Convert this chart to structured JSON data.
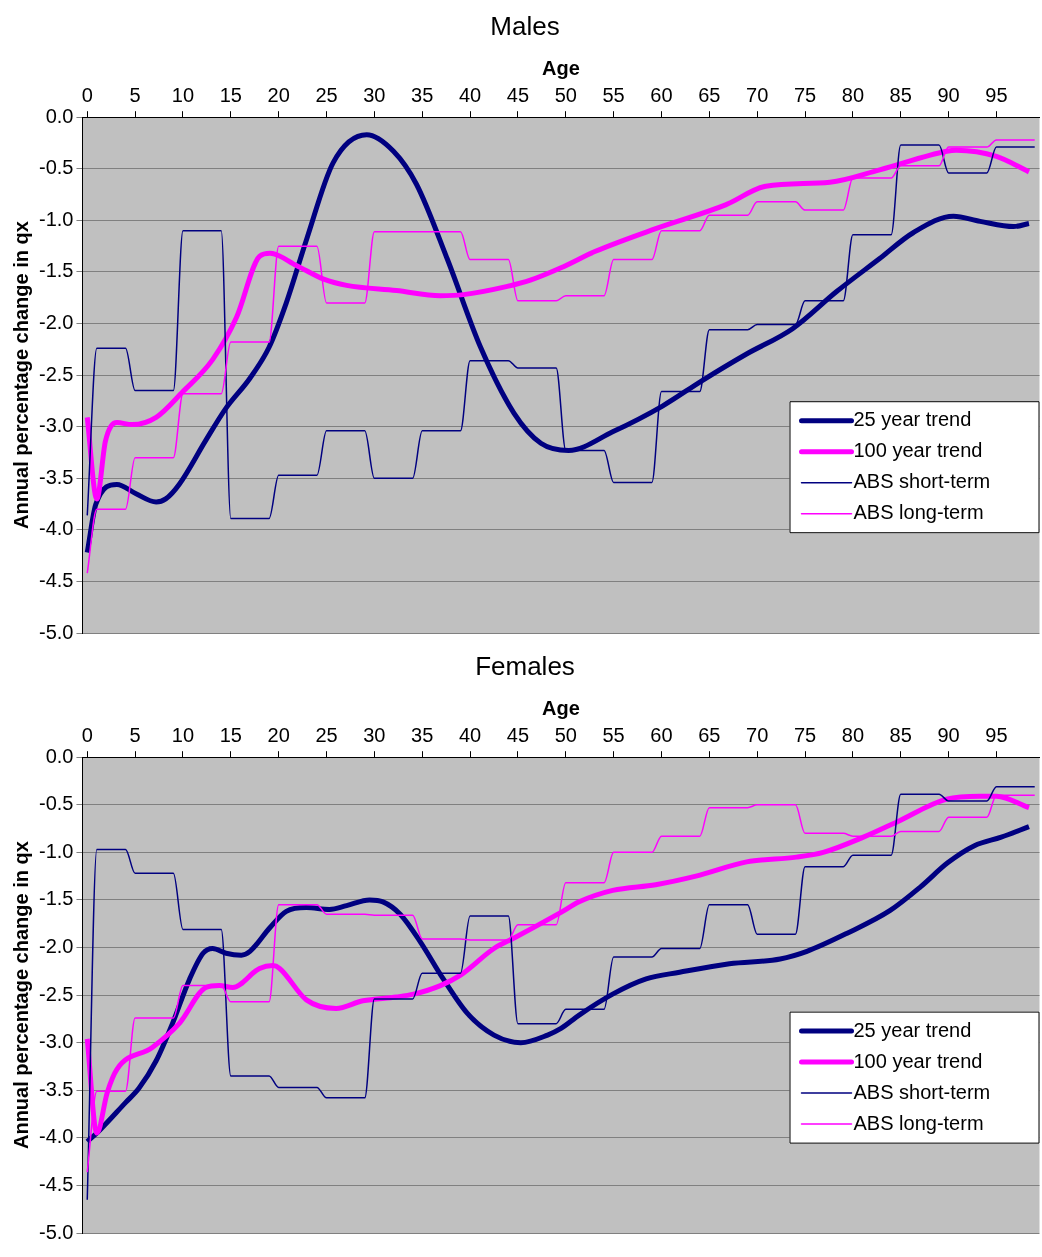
{
  "chart_data": [
    {
      "type": "line",
      "title": "Males",
      "xlabel": "Age",
      "ylabel": "Annual percentage change in qx",
      "xlim": [
        -0.5,
        99.5
      ],
      "xticks": [
        0,
        5,
        10,
        15,
        20,
        25,
        30,
        35,
        40,
        45,
        50,
        55,
        60,
        65,
        70,
        75,
        80,
        85,
        90,
        95
      ],
      "ylim": [
        -5,
        0
      ],
      "yticks": [
        {
          "value": -5,
          "label": "-5.0"
        },
        -4.5,
        {
          "value": -4,
          "label": "-4.0"
        },
        -3.5,
        {
          "value": -3,
          "label": "-3.0"
        },
        -2.5,
        {
          "value": -2,
          "label": "-2.0"
        },
        -1.5,
        {
          "value": -1,
          "label": "-1.0"
        },
        -0.5,
        {
          "value": 0,
          "label": "0.0"
        }
      ],
      "grid": "y",
      "legend": "right",
      "x": [
        0,
        1,
        4,
        5,
        9,
        10,
        14,
        15,
        19,
        20,
        24,
        25,
        29,
        30,
        34,
        35,
        39,
        40,
        44,
        45,
        49,
        50,
        54,
        55,
        59,
        60,
        64,
        65,
        69,
        70,
        74,
        75,
        79,
        80,
        84,
        85,
        89,
        90,
        94,
        95,
        99
      ],
      "series": [
        {
          "name": "25 year trend",
          "color": "#000080",
          "x": [
            0,
            0.9,
            3.1,
            5.1,
            7.2,
            8.2,
            9.6,
            12.4,
            14.5,
            17,
            19,
            20.8,
            22.9,
            25.7,
            29.2,
            32,
            34.4,
            37.6,
            41.1,
            44.6,
            47.4,
            50.3,
            54.9,
            60.1,
            64.3,
            68.8,
            73.7,
            78.3,
            82.8,
            86.3,
            90.5,
            93.3,
            96.8,
            98.4
          ],
          "values": [
            -4.22,
            -3.75,
            -3.56,
            -3.65,
            -3.73,
            -3.7,
            -3.56,
            -3.13,
            -2.82,
            -2.53,
            -2.23,
            -1.8,
            -1.19,
            -0.44,
            -0.17,
            -0.33,
            -0.65,
            -1.37,
            -2.23,
            -2.87,
            -3.16,
            -3.23,
            -3.05,
            -2.8,
            -2.55,
            -2.3,
            -2.05,
            -1.69,
            -1.37,
            -1.12,
            -0.96,
            -1.01,
            -1.06,
            -1.03
          ]
        },
        {
          "name": "100 year trend",
          "color": "#ff00ff",
          "x": [
            0,
            1,
            1.9,
            3.1,
            4.7,
            7.2,
            10,
            13.1,
            15.6,
            18,
            19.1,
            21.9,
            24.7,
            27.1,
            32.3,
            36.9,
            39.3,
            43.9,
            46.3,
            49.5,
            53.1,
            59.4,
            66.7,
            70.9,
            77.6,
            82.8,
            89.8,
            90.8,
            95,
            98.4
          ],
          "values": [
            -2.91,
            -3.7,
            -3.14,
            -2.96,
            -2.98,
            -2.91,
            -2.66,
            -2.35,
            -1.94,
            -1.35,
            -1.32,
            -1.44,
            -1.57,
            -1.63,
            -1.68,
            -1.73,
            -1.72,
            -1.64,
            -1.58,
            -1.46,
            -1.3,
            -1.08,
            -0.85,
            -0.67,
            -0.63,
            -0.51,
            -0.33,
            -0.32,
            -0.38,
            -0.53
          ]
        },
        {
          "name": "ABS short-term",
          "color": "#000080",
          "values": [
            -3.86,
            -2.24,
            -2.24,
            -2.65,
            -2.65,
            -1.1,
            -1.1,
            -3.89,
            -3.89,
            -3.47,
            -3.47,
            -3.04,
            -3.04,
            -3.5,
            -3.5,
            -3.04,
            -3.04,
            -2.36,
            -2.36,
            -2.43,
            -2.43,
            -3.23,
            -3.23,
            -3.54,
            -3.54,
            -2.66,
            -2.66,
            -2.06,
            -2.06,
            -2.01,
            -2.01,
            -1.78,
            -1.78,
            -1.14,
            -1.14,
            -0.27,
            -0.27,
            -0.54,
            -0.54,
            -0.29,
            -0.29
          ]
        },
        {
          "name": "ABS long-term",
          "color": "#ff00ff",
          "values": [
            -4.42,
            -3.8,
            -3.8,
            -3.3,
            -3.3,
            -2.68,
            -2.68,
            -2.18,
            -2.18,
            -1.25,
            -1.25,
            -1.8,
            -1.8,
            -1.11,
            -1.11,
            -1.11,
            -1.11,
            -1.38,
            -1.38,
            -1.78,
            -1.78,
            -1.73,
            -1.73,
            -1.38,
            -1.38,
            -1.1,
            -1.1,
            -0.95,
            -0.95,
            -0.82,
            -0.82,
            -0.9,
            -0.9,
            -0.59,
            -0.59,
            -0.47,
            -0.47,
            -0.29,
            -0.29,
            -0.22,
            -0.22
          ]
        }
      ]
    },
    {
      "type": "line",
      "title": "Females",
      "xlabel": "Age",
      "ylabel": "Annual percentage change in qx",
      "xlim": [
        -0.5,
        99.5
      ],
      "xticks": [
        0,
        5,
        10,
        15,
        20,
        25,
        30,
        35,
        40,
        45,
        50,
        55,
        60,
        65,
        70,
        75,
        80,
        85,
        90,
        95
      ],
      "ylim": [
        -5,
        0
      ],
      "yticks": [
        {
          "value": -5,
          "label": "-5.0"
        },
        -4.5,
        {
          "value": -4,
          "label": "-4.0"
        },
        -3.5,
        {
          "value": -3,
          "label": "-3.0"
        },
        -2.5,
        {
          "value": -2,
          "label": "-2.0"
        },
        -1.5,
        {
          "value": -1,
          "label": "-1.0"
        },
        -0.5,
        {
          "value": 0,
          "label": "0.0"
        }
      ],
      "grid": "y",
      "legend": "right",
      "x": [
        0,
        1,
        4,
        5,
        9,
        10,
        14,
        15,
        19,
        20,
        24,
        25,
        29,
        30,
        34,
        35,
        39,
        40,
        44,
        45,
        49,
        50,
        54,
        55,
        59,
        60,
        64,
        65,
        69,
        70,
        74,
        75,
        79,
        80,
        84,
        85,
        89,
        90,
        94,
        95,
        99
      ],
      "series": [
        {
          "name": "25 year trend",
          "color": "#000080",
          "x": [
            0,
            1.2,
            4,
            5.4,
            7.2,
            8.9,
            10.7,
            12.1,
            13.1,
            14.5,
            16.1,
            17,
            19.1,
            20.8,
            22.9,
            25.3,
            27.1,
            29.5,
            30.9,
            32.7,
            34.8,
            37.2,
            39.7,
            42.5,
            45.3,
            48.1,
            49.5,
            51.4,
            54.9,
            58.4,
            61.9,
            67.1,
            72.4,
            75.2,
            79.4,
            83.9,
            87.1,
            89.9,
            92.7,
            95.5,
            98.4
          ],
          "values": [
            -4.04,
            -3.93,
            -3.63,
            -3.48,
            -3.19,
            -2.8,
            -2.33,
            -2.06,
            -2.01,
            -2.06,
            -2.08,
            -2.04,
            -1.79,
            -1.62,
            -1.58,
            -1.6,
            -1.56,
            -1.5,
            -1.52,
            -1.65,
            -1.94,
            -2.33,
            -2.69,
            -2.92,
            -3,
            -2.92,
            -2.85,
            -2.71,
            -2.49,
            -2.33,
            -2.26,
            -2.17,
            -2.12,
            -2.04,
            -1.85,
            -1.61,
            -1.36,
            -1.11,
            -0.93,
            -0.84,
            -0.73
          ]
        },
        {
          "name": "100 year trend",
          "color": "#ff00ff",
          "x": [
            0,
            1,
            2.1,
            3.1,
            6.8,
            9.6,
            12.4,
            13.8,
            15.2,
            18,
            19.4,
            20.1,
            22.9,
            26,
            28.8,
            32.3,
            34.1,
            36.9,
            39,
            42.5,
            44.6,
            49.5,
            51.4,
            54.9,
            59.4,
            63.6,
            68.9,
            74.1,
            76.9,
            81.1,
            84.6,
            89.8,
            93.3,
            95,
            98.4
          ],
          "values": [
            -2.96,
            -3.95,
            -3.52,
            -3.28,
            -3.05,
            -2.8,
            -2.42,
            -2.4,
            -2.42,
            -2.22,
            -2.19,
            -2.22,
            -2.55,
            -2.64,
            -2.56,
            -2.52,
            -2.49,
            -2.4,
            -2.29,
            -2.01,
            -1.9,
            -1.63,
            -1.52,
            -1.4,
            -1.34,
            -1.25,
            -1.1,
            -1.05,
            -1,
            -0.84,
            -0.68,
            -0.44,
            -0.41,
            -0.41,
            -0.53
          ]
        },
        {
          "name": "ABS short-term",
          "color": "#000080",
          "values": [
            -4.65,
            -0.97,
            -0.97,
            -1.22,
            -1.22,
            -1.81,
            -1.81,
            -3.35,
            -3.35,
            -3.47,
            -3.47,
            -3.58,
            -3.58,
            -2.54,
            -2.54,
            -2.27,
            -2.27,
            -1.67,
            -1.67,
            -2.8,
            -2.8,
            -2.65,
            -2.65,
            -2.1,
            -2.1,
            -2.01,
            -2.01,
            -1.55,
            -1.55,
            -1.86,
            -1.86,
            -1.15,
            -1.15,
            -1.03,
            -1.03,
            -0.39,
            -0.39,
            -0.46,
            -0.46,
            -0.31,
            -0.31
          ]
        },
        {
          "name": "ABS long-term",
          "color": "#ff00ff",
          "values": [
            -4.36,
            -3.51,
            -3.51,
            -2.74,
            -2.74,
            -2.4,
            -2.4,
            -2.57,
            -2.57,
            -1.55,
            -1.55,
            -1.65,
            -1.65,
            -1.66,
            -1.66,
            -1.91,
            -1.91,
            -1.92,
            -1.92,
            -1.76,
            -1.76,
            -1.32,
            -1.32,
            -1,
            -1,
            -0.83,
            -0.83,
            -0.53,
            -0.53,
            -0.5,
            -0.5,
            -0.8,
            -0.8,
            -0.83,
            -0.83,
            -0.78,
            -0.78,
            -0.63,
            -0.63,
            -0.4,
            -0.4
          ]
        }
      ]
    }
  ]
}
